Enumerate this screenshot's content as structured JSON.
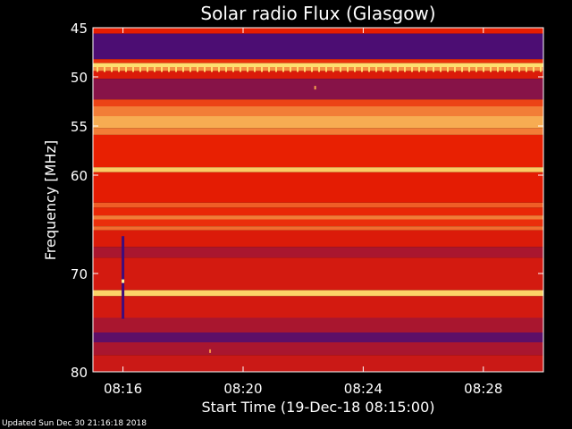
{
  "chart_data": {
    "type": "heatmap",
    "title": "Solar radio Flux (Glasgow)",
    "xlabel": "Start Time (19-Dec-18 08:15:00)",
    "ylabel": "Frequency [MHz]",
    "ylim": [
      80,
      45
    ],
    "y_ticks": [
      45,
      50,
      55,
      60,
      70,
      80
    ],
    "x_ticks": [
      {
        "label": "08:16",
        "minutes": 1
      },
      {
        "label": "08:20",
        "minutes": 5
      },
      {
        "label": "08:24",
        "minutes": 9
      },
      {
        "label": "08:28",
        "minutes": 13
      }
    ],
    "xlim_minutes": [
      0,
      15
    ],
    "colormap": {
      "low": "#2a0a8c",
      "mid": "#e81c00",
      "high": "#fff27a"
    },
    "bands": [
      {
        "f0": 45.0,
        "f1": 45.6,
        "level": 0.45
      },
      {
        "f0": 45.6,
        "f1": 48.2,
        "level": 0.08
      },
      {
        "f0": 48.2,
        "f1": 48.6,
        "level": 0.5
      },
      {
        "f0": 48.6,
        "f1": 49.0,
        "level": 0.95
      },
      {
        "f0": 49.0,
        "f1": 49.4,
        "level": 0.75
      },
      {
        "f0": 49.4,
        "f1": 50.2,
        "level": 0.42
      },
      {
        "f0": 50.2,
        "f1": 52.3,
        "level": 0.22
      },
      {
        "f0": 52.3,
        "f1": 53.0,
        "level": 0.55
      },
      {
        "f0": 53.0,
        "f1": 54.0,
        "level": 0.7
      },
      {
        "f0": 54.0,
        "f1": 55.2,
        "level": 0.82
      },
      {
        "f0": 55.2,
        "f1": 55.9,
        "level": 0.7
      },
      {
        "f0": 55.9,
        "f1": 59.2,
        "level": 0.46
      },
      {
        "f0": 59.2,
        "f1": 59.7,
        "level": 0.9
      },
      {
        "f0": 59.7,
        "f1": 62.8,
        "level": 0.44
      },
      {
        "f0": 62.8,
        "f1": 63.3,
        "level": 0.62
      },
      {
        "f0": 63.3,
        "f1": 64.1,
        "level": 0.48
      },
      {
        "f0": 64.1,
        "f1": 64.5,
        "level": 0.7
      },
      {
        "f0": 64.5,
        "f1": 65.2,
        "level": 0.5
      },
      {
        "f0": 65.2,
        "f1": 65.6,
        "level": 0.66
      },
      {
        "f0": 65.6,
        "f1": 67.3,
        "level": 0.42
      },
      {
        "f0": 67.3,
        "f1": 68.4,
        "level": 0.3
      },
      {
        "f0": 68.4,
        "f1": 71.7,
        "level": 0.4
      },
      {
        "f0": 71.7,
        "f1": 72.3,
        "level": 0.92
      },
      {
        "f0": 72.3,
        "f1": 74.5,
        "level": 0.4
      },
      {
        "f0": 74.5,
        "f1": 76.0,
        "level": 0.3
      },
      {
        "f0": 76.0,
        "f1": 77.0,
        "level": 0.12
      },
      {
        "f0": 77.0,
        "f1": 78.3,
        "level": 0.3
      },
      {
        "f0": 78.3,
        "f1": 80.0,
        "level": 0.38
      }
    ],
    "features": [
      {
        "kind": "tick-marks",
        "f0": 48.9,
        "f1": 49.5,
        "level": 0.95
      },
      {
        "kind": "burst",
        "t": 1.0,
        "f0": 66.2,
        "f1": 74.6,
        "level": 0.05
      },
      {
        "kind": "spot",
        "t": 7.4,
        "f": 51.1,
        "level": 0.8
      },
      {
        "kind": "spot",
        "t": 3.9,
        "f": 77.9,
        "level": 0.75
      }
    ]
  },
  "footer": {
    "updated": "Updated Sun Dec 30 21:16:18 2018"
  }
}
